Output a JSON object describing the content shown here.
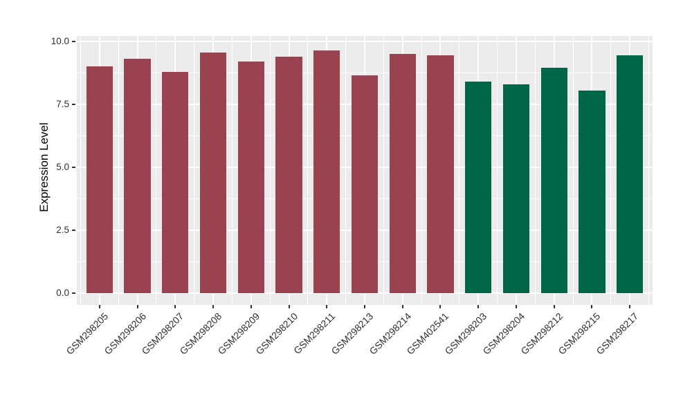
{
  "figure": {
    "background": "#FFFFFF",
    "panel_background": "#EBEBEB",
    "grid_color": "#FFFFFF",
    "axis_tick_color": "#333333",
    "axis_text_color": "#303030",
    "axis_title_color": "#000000"
  },
  "chart_data": {
    "type": "bar",
    "title": "",
    "xlabel": "",
    "ylabel": "Expression Level",
    "ylim": [
      0,
      10.2
    ],
    "grid": "on",
    "legend_position": "none",
    "categories": [
      "GSM298205",
      "GSM298206",
      "GSM298207",
      "GSM298208",
      "GSM298209",
      "GSM298210",
      "GSM298211",
      "GSM298213",
      "GSM298214",
      "GSM402541",
      "GSM298203",
      "GSM298204",
      "GSM298212",
      "GSM298215",
      "GSM298217"
    ],
    "values": [
      9.0,
      9.3,
      8.8,
      9.55,
      9.2,
      9.4,
      9.65,
      8.65,
      9.5,
      9.45,
      8.4,
      8.3,
      8.95,
      8.05,
      9.45
    ],
    "bar_colors": [
      "#9B4250",
      "#9B4250",
      "#9B4250",
      "#9B4250",
      "#9B4250",
      "#9B4250",
      "#9B4250",
      "#9B4250",
      "#9B4250",
      "#9B4250",
      "#006647",
      "#006647",
      "#006647",
      "#006647",
      "#006647"
    ],
    "groups": [
      {
        "name": "red-group",
        "color": "#9B4250",
        "categories": [
          "GSM298205",
          "GSM298206",
          "GSM298207",
          "GSM298208",
          "GSM298209",
          "GSM298210",
          "GSM298211",
          "GSM298213",
          "GSM298214",
          "GSM402541"
        ]
      },
      {
        "name": "green-group",
        "color": "#006647",
        "categories": [
          "GSM298203",
          "GSM298204",
          "GSM298212",
          "GSM298215",
          "GSM298217"
        ]
      }
    ],
    "yticks": [
      {
        "label": "0.0",
        "value": 0
      },
      {
        "label": "2.5",
        "value": 2.5
      },
      {
        "label": "5.0",
        "value": 5
      },
      {
        "label": "7.5",
        "value": 7.5
      },
      {
        "label": "10.0",
        "value": 10
      }
    ],
    "minor_yticks": [
      1.25,
      3.75,
      6.25,
      8.75
    ]
  }
}
